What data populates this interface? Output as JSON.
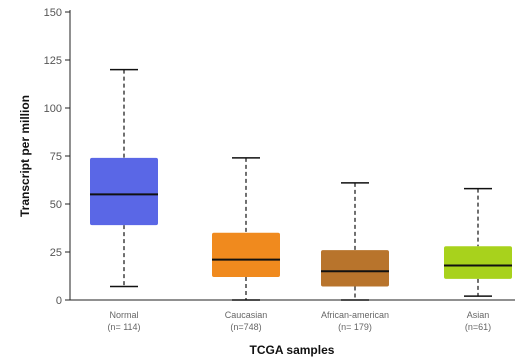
{
  "chart_data": {
    "type": "box",
    "xlabel": "TCGA samples",
    "ylabel": "Transcript per million",
    "ylim": [
      0,
      150
    ],
    "yticks": [
      0,
      25,
      50,
      75,
      100,
      125,
      150
    ],
    "grid": false,
    "legend": "none",
    "boxes": [
      {
        "category": "Normal",
        "n_label": "(n= 114)",
        "min": 7,
        "q1": 39,
        "median": 55,
        "q3": 74,
        "max": 120,
        "color": "#5a67e6"
      },
      {
        "category": "Caucasian",
        "n_label": "(n=748)",
        "min": 0,
        "q1": 12,
        "median": 21,
        "q3": 35,
        "max": 74,
        "color": "#f08a1e"
      },
      {
        "category": "African-american",
        "n_label": "(n= 179)",
        "min": 0,
        "q1": 7,
        "median": 15,
        "q3": 26,
        "max": 61,
        "color": "#b8742c"
      },
      {
        "category": "Asian",
        "n_label": "(n=61)",
        "min": 2,
        "q1": 11,
        "median": 18,
        "q3": 28,
        "max": 58,
        "color": "#a8d21c"
      }
    ]
  }
}
